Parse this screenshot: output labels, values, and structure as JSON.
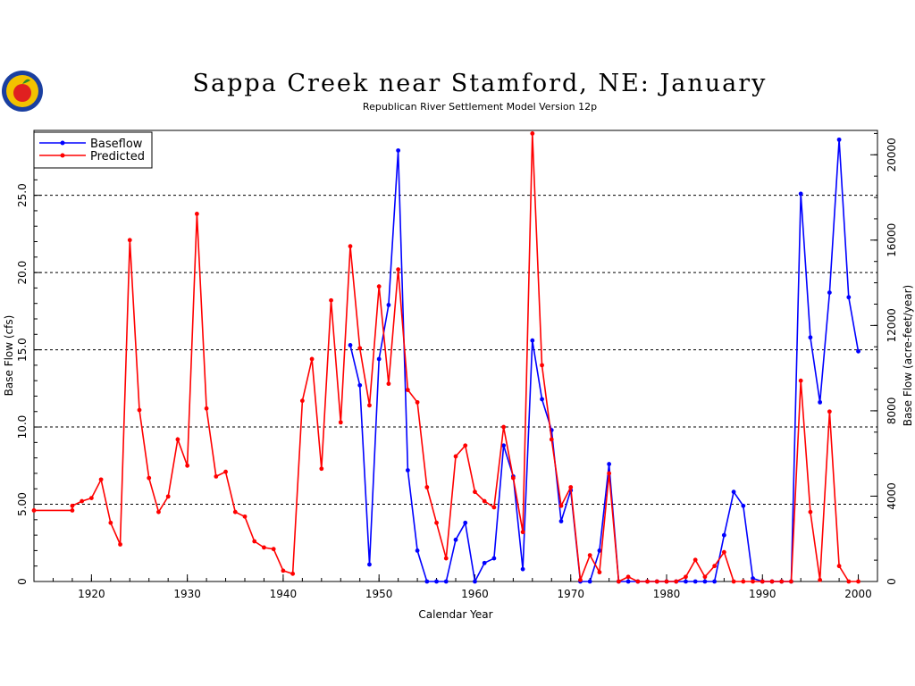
{
  "logo": {
    "icon": "apple-logo-icon",
    "colors": [
      "#1a3fa0",
      "#f2c200",
      "#e02020",
      "#2a8a2a"
    ]
  },
  "chart_data": {
    "type": "line",
    "title": "Sappa Creek near Stamford, NE: January",
    "subtitle": "Republican River Settlement Model Version 12p",
    "xlabel": "Calendar Year",
    "ylabel": "Base Flow (cfs)",
    "ylabel_right": "Base Flow (acre-feet/year)",
    "xlim": [
      1914,
      2002
    ],
    "ylim": [
      0,
      29.2
    ],
    "ylim_right": [
      0,
      21142
    ],
    "x_ticks": [
      {
        "value": 1920,
        "label": "1920"
      },
      {
        "value": 1930,
        "label": "1930"
      },
      {
        "value": 1940,
        "label": "1940"
      },
      {
        "value": 1950,
        "label": "1950"
      },
      {
        "value": 1960,
        "label": "1960"
      },
      {
        "value": 1970,
        "label": "1970"
      },
      {
        "value": 1980,
        "label": "1980"
      },
      {
        "value": 1990,
        "label": "1990"
      },
      {
        "value": 2000,
        "label": "2000"
      }
    ],
    "y_ticks": [
      {
        "value": 0,
        "label": "0"
      },
      {
        "value": 5,
        "label": "5.00"
      },
      {
        "value": 10,
        "label": "10.0"
      },
      {
        "value": 15,
        "label": "15.0"
      },
      {
        "value": 20,
        "label": "20.0"
      },
      {
        "value": 25,
        "label": "25.0"
      }
    ],
    "y_ticks_right": [
      {
        "value": 0,
        "label": "0"
      },
      {
        "value": 4000,
        "label": "4000"
      },
      {
        "value": 8000,
        "label": "8000"
      },
      {
        "value": 12000,
        "label": "12000"
      },
      {
        "value": 16000,
        "label": "16000"
      },
      {
        "value": 20000,
        "label": "20000"
      }
    ],
    "gridlines_y": [
      5,
      10,
      15,
      20,
      25
    ],
    "grid_style": "dashed horizontal",
    "legend": {
      "position": "top-left"
    },
    "series": [
      {
        "name": "Baseflow",
        "color": "#0000ff",
        "points": [
          [
            1947,
            15.3
          ],
          [
            1948,
            12.7
          ],
          [
            1949,
            1.1
          ],
          [
            1950,
            14.4
          ],
          [
            1951,
            17.9
          ],
          [
            1952,
            27.9
          ],
          [
            1953,
            7.2
          ],
          [
            1954,
            2.0
          ],
          [
            1955,
            0
          ],
          [
            1956,
            0
          ],
          [
            1957,
            0
          ],
          [
            1958,
            2.7
          ],
          [
            1959,
            3.8
          ],
          [
            1960,
            0
          ],
          [
            1961,
            1.2
          ],
          [
            1962,
            1.5
          ],
          [
            1963,
            8.8
          ],
          [
            1964,
            6.8
          ],
          [
            1965,
            0.8
          ],
          [
            1966,
            15.6
          ],
          [
            1967,
            11.8
          ],
          [
            1968,
            9.8
          ],
          [
            1969,
            3.9
          ],
          [
            1970,
            5.9
          ],
          [
            1971,
            0
          ],
          [
            1972,
            0
          ],
          [
            1973,
            2.0
          ],
          [
            1974,
            7.6
          ],
          [
            1975,
            0
          ],
          [
            1976,
            0
          ],
          [
            1977,
            0
          ],
          [
            1978,
            0
          ],
          [
            1979,
            0
          ],
          [
            1980,
            0
          ],
          [
            1981,
            0
          ],
          [
            1982,
            0
          ],
          [
            1983,
            0
          ],
          [
            1984,
            0
          ],
          [
            1985,
            0
          ],
          [
            1986,
            3.0
          ],
          [
            1987,
            5.8
          ],
          [
            1988,
            4.9
          ],
          [
            1989,
            0.2
          ],
          [
            1990,
            0
          ],
          [
            1991,
            0
          ],
          [
            1992,
            0
          ],
          [
            1993,
            0
          ],
          [
            1994,
            25.1
          ],
          [
            1995,
            15.8
          ],
          [
            1996,
            11.6
          ],
          [
            1997,
            18.7
          ],
          [
            1998,
            28.6
          ],
          [
            1999,
            18.4
          ],
          [
            2000,
            14.9
          ]
        ]
      },
      {
        "name": "Predicted",
        "color": "#ff0000",
        "points": [
          [
            1914,
            4.6
          ],
          [
            1918,
            4.6
          ],
          [
            1918,
            4.9
          ],
          [
            1919,
            5.2
          ],
          [
            1920,
            5.4
          ],
          [
            1921,
            6.6
          ],
          [
            1922,
            3.8
          ],
          [
            1923,
            2.4
          ],
          [
            1924,
            22.1
          ],
          [
            1925,
            11.1
          ],
          [
            1926,
            6.7
          ],
          [
            1927,
            4.5
          ],
          [
            1928,
            5.5
          ],
          [
            1929,
            9.2
          ],
          [
            1930,
            7.5
          ],
          [
            1931,
            23.8
          ],
          [
            1932,
            11.2
          ],
          [
            1933,
            6.8
          ],
          [
            1934,
            7.1
          ],
          [
            1935,
            4.5
          ],
          [
            1936,
            4.2
          ],
          [
            1937,
            2.6
          ],
          [
            1938,
            2.2
          ],
          [
            1939,
            2.1
          ],
          [
            1940,
            0.7
          ],
          [
            1941,
            0.5
          ],
          [
            1942,
            11.7
          ],
          [
            1943,
            14.4
          ],
          [
            1944,
            7.3
          ],
          [
            1945,
            18.2
          ],
          [
            1946,
            10.3
          ],
          [
            1947,
            21.7
          ],
          [
            1948,
            15.1
          ],
          [
            1949,
            11.4
          ],
          [
            1950,
            19.1
          ],
          [
            1951,
            12.8
          ],
          [
            1952,
            20.2
          ],
          [
            1953,
            12.4
          ],
          [
            1954,
            11.6
          ],
          [
            1955,
            6.1
          ],
          [
            1956,
            3.8
          ],
          [
            1957,
            1.5
          ],
          [
            1958,
            8.1
          ],
          [
            1959,
            8.8
          ],
          [
            1960,
            5.8
          ],
          [
            1961,
            5.2
          ],
          [
            1962,
            4.8
          ],
          [
            1963,
            10.0
          ],
          [
            1964,
            6.7
          ],
          [
            1965,
            3.2
          ],
          [
            1966,
            29.0
          ],
          [
            1967,
            14.0
          ],
          [
            1968,
            9.2
          ],
          [
            1969,
            4.9
          ],
          [
            1970,
            6.1
          ],
          [
            1971,
            0.1
          ],
          [
            1972,
            1.7
          ],
          [
            1973,
            0.6
          ],
          [
            1974,
            7.0
          ],
          [
            1975,
            0
          ],
          [
            1976,
            0.3
          ],
          [
            1977,
            0
          ],
          [
            1978,
            0
          ],
          [
            1979,
            0
          ],
          [
            1980,
            0
          ],
          [
            1981,
            0
          ],
          [
            1982,
            0.3
          ],
          [
            1983,
            1.4
          ],
          [
            1984,
            0.3
          ],
          [
            1985,
            1.0
          ],
          [
            1986,
            1.9
          ],
          [
            1987,
            0
          ],
          [
            1988,
            0
          ],
          [
            1989,
            0
          ],
          [
            1990,
            0
          ],
          [
            1991,
            0
          ],
          [
            1992,
            0
          ],
          [
            1993,
            0
          ],
          [
            1994,
            13.0
          ],
          [
            1995,
            4.5
          ],
          [
            1996,
            0.1
          ],
          [
            1997,
            11.0
          ],
          [
            1998,
            1.0
          ],
          [
            1999,
            0
          ],
          [
            2000,
            0
          ]
        ]
      }
    ]
  }
}
